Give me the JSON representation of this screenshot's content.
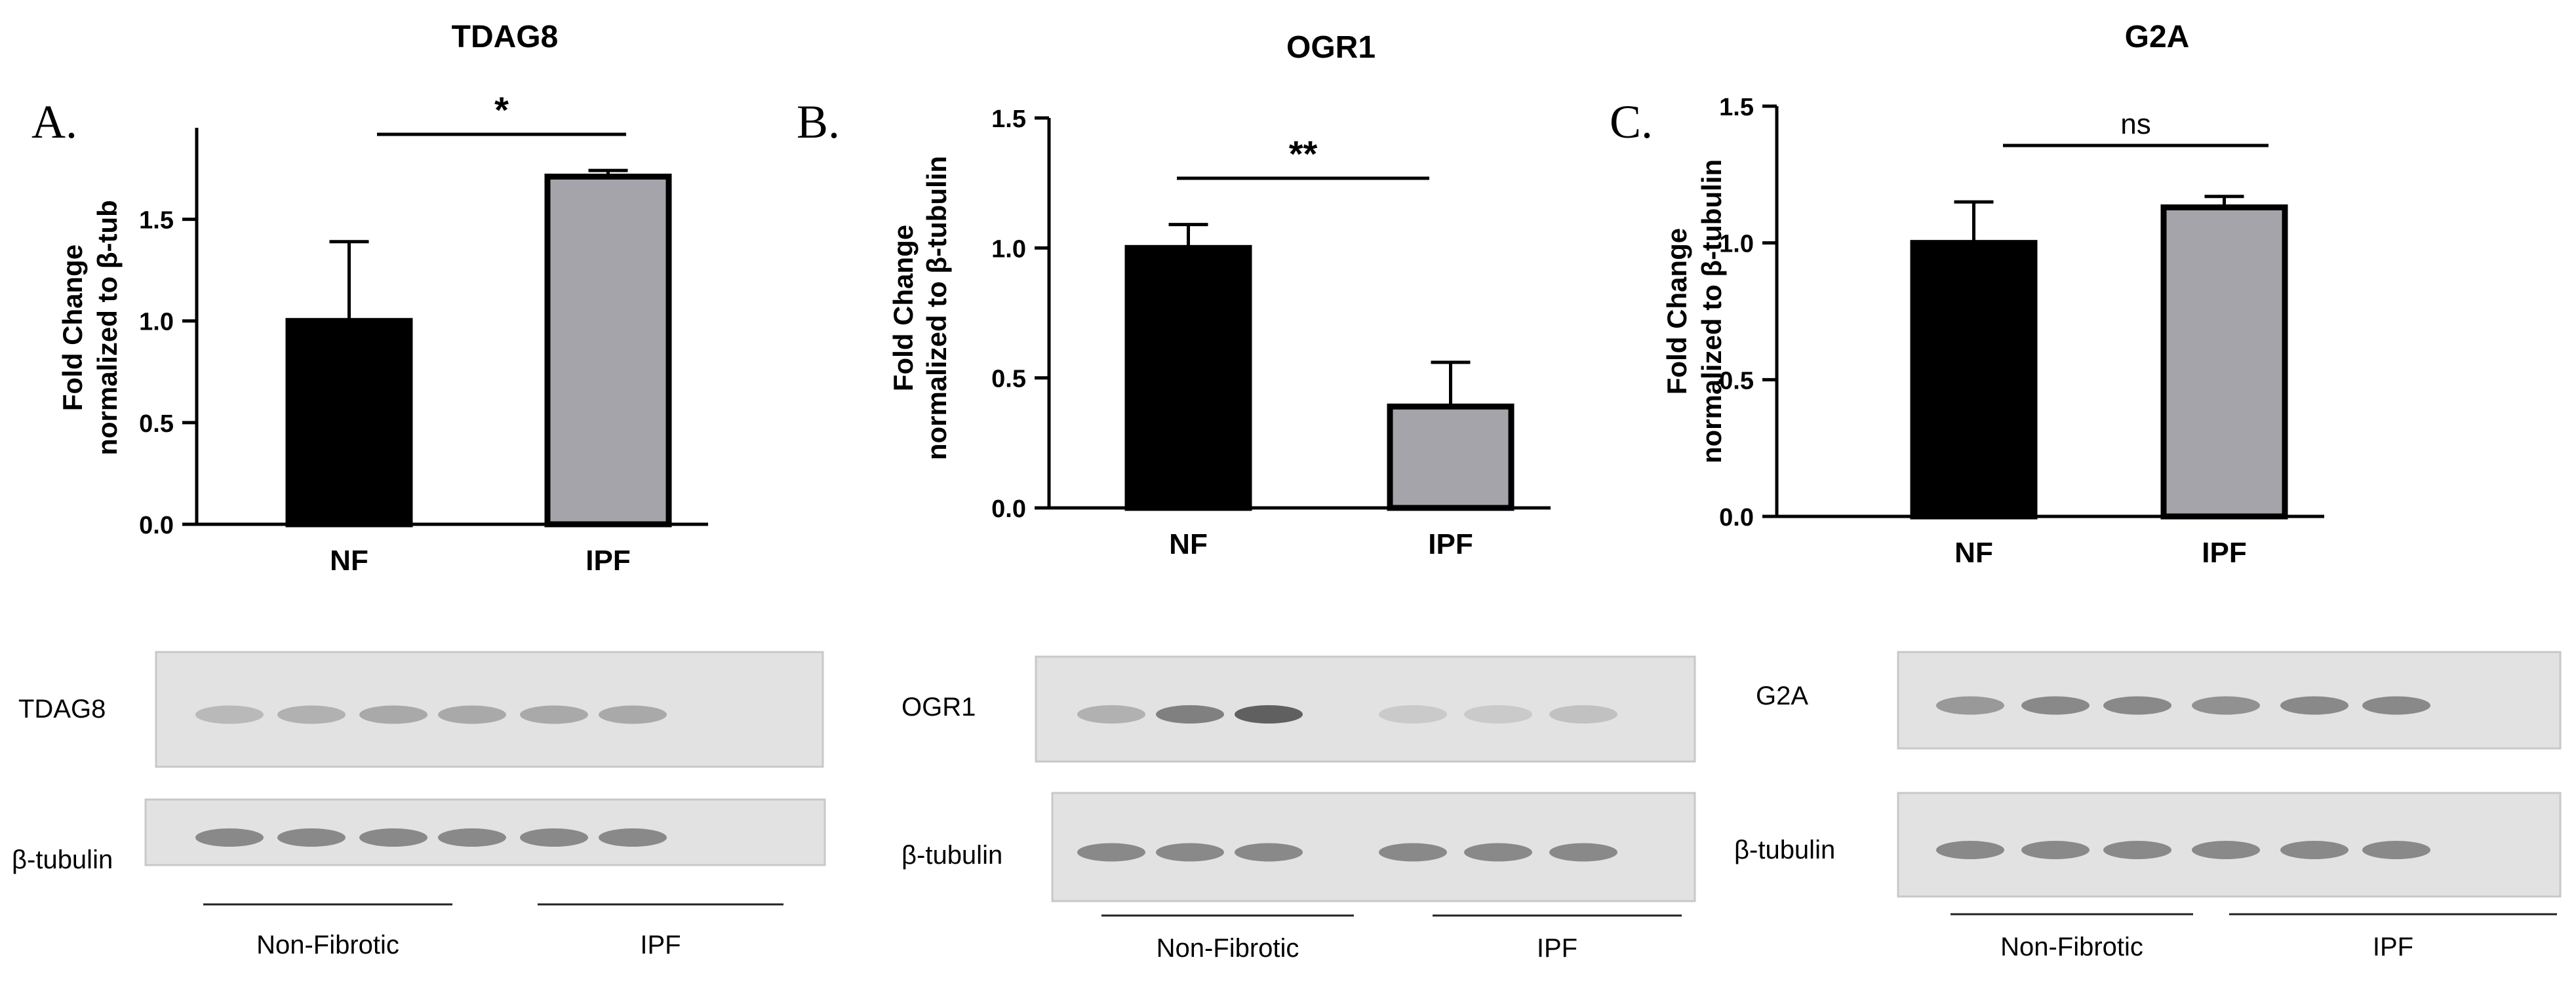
{
  "chart_data": [
    {
      "type": "bar",
      "panel_letter": "A.",
      "title": "TDAG8",
      "ylabel_line1": "Fold Change",
      "ylabel_line2": "normalized to β-tub",
      "categories": [
        "NF",
        "IPF"
      ],
      "values": [
        1.0,
        1.71
      ],
      "errors": [
        0.39,
        0.03
      ],
      "bar_colors": [
        "#000000",
        "#a5a4aa"
      ],
      "ylim": [
        0,
        1.95
      ],
      "yticks": [
        0.0,
        0.5,
        1.0,
        1.5
      ],
      "ytick_labels": [
        "0.0",
        "0.5",
        "1.0",
        "1.5"
      ],
      "significance": "*",
      "blot": {
        "protein_label": "TDAG8",
        "loading_label": "β-tubulin",
        "group_labels": [
          "Non-Fibrotic",
          "IPF"
        ],
        "lane_count": 6
      }
    },
    {
      "type": "bar",
      "panel_letter": "B.",
      "title": "OGR1",
      "ylabel_line1": "Fold Change",
      "ylabel_line2": "normalized to β-tubulin",
      "categories": [
        "NF",
        "IPF"
      ],
      "values": [
        1.0,
        0.39
      ],
      "errors": [
        0.09,
        0.17
      ],
      "bar_colors": [
        "#000000",
        "#a5a4aa"
      ],
      "ylim": [
        0,
        1.5
      ],
      "yticks": [
        0.0,
        0.5,
        1.0,
        1.5
      ],
      "ytick_labels": [
        "0.0",
        "0.5",
        "1.0",
        "1.5"
      ],
      "significance": "**",
      "blot": {
        "protein_label": "OGR1",
        "loading_label": "β-tubulin",
        "group_labels": [
          "Non-Fibrotic",
          "IPF"
        ],
        "lane_count": 6
      }
    },
    {
      "type": "bar",
      "panel_letter": "C.",
      "title": "G2A",
      "ylabel_line1": "Fold Change",
      "ylabel_line2": "normalized to β-tubulin",
      "categories": [
        "NF",
        "IPF"
      ],
      "values": [
        1.0,
        1.13
      ],
      "errors": [
        0.15,
        0.04
      ],
      "bar_colors": [
        "#000000",
        "#a5a4aa"
      ],
      "ylim": [
        0,
        1.5
      ],
      "yticks": [
        0.0,
        0.5,
        1.0,
        1.5
      ],
      "ytick_labels": [
        "0.0",
        "0.5",
        "1.0",
        "1.5"
      ],
      "significance": "ns",
      "blot": {
        "protein_label": "G2A",
        "loading_label": "β-tubulin",
        "group_labels": [
          "Non-Fibrotic",
          "IPF"
        ],
        "lane_count": 6
      }
    }
  ]
}
